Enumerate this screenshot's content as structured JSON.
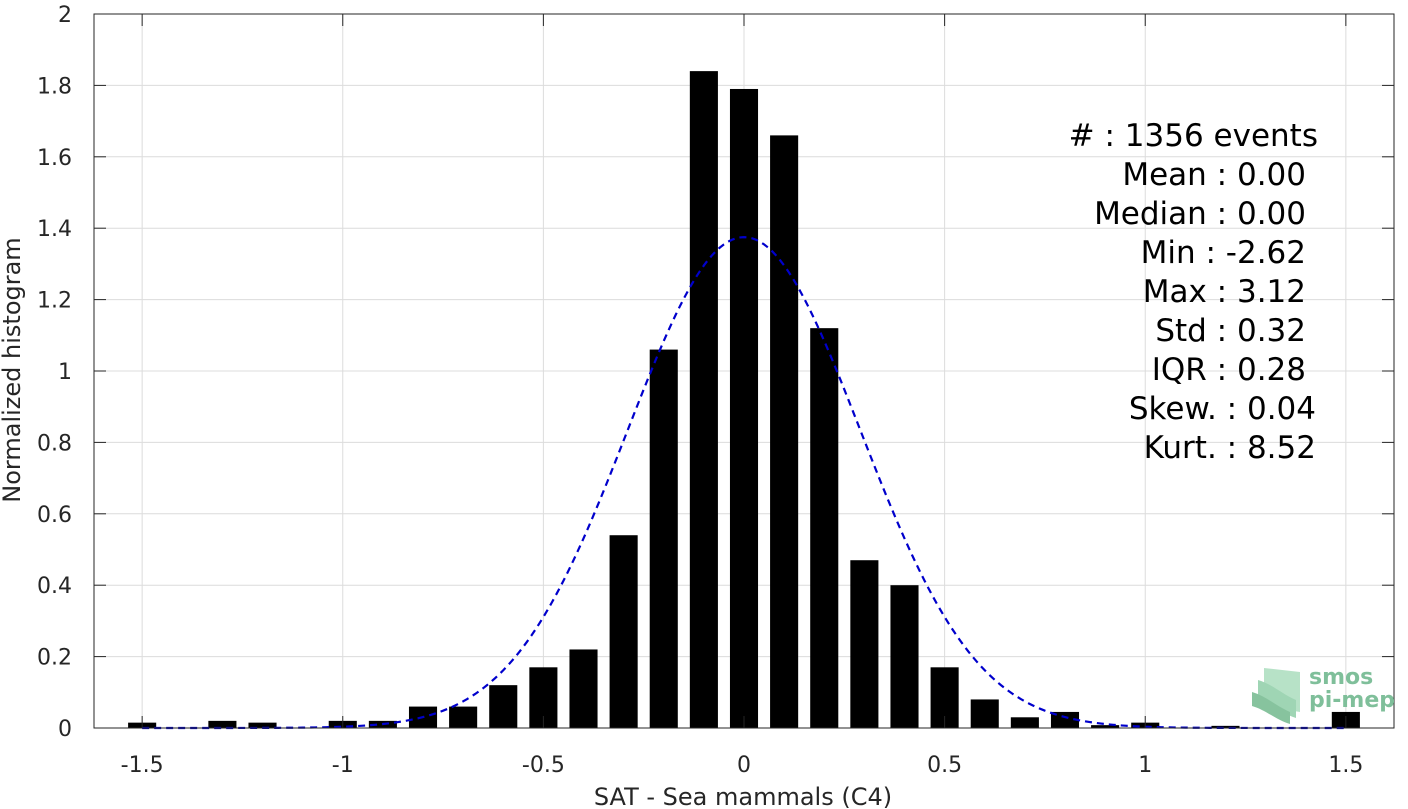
{
  "chart_data": {
    "type": "bar",
    "title": "",
    "xlabel": "SAT - Sea mammals (C4)",
    "ylabel": "Normalized histogram",
    "xlim": [
      -1.62,
      1.62
    ],
    "ylim": [
      0,
      2
    ],
    "grid": true,
    "x_ticks": [
      -1.5,
      -1,
      -0.5,
      0,
      0.5,
      1,
      1.5
    ],
    "x_tick_labels": [
      "-1.5",
      "-1",
      "-0.5",
      "0",
      "0.5",
      "1",
      "1.5"
    ],
    "y_ticks": [
      0,
      0.2,
      0.4,
      0.6,
      0.8,
      1,
      1.2,
      1.4,
      1.6,
      1.8,
      2
    ],
    "y_tick_labels": [
      "0",
      "0.2",
      "0.4",
      "0.6",
      "0.8",
      "1",
      "1.2",
      "1.4",
      "1.6",
      "1.8",
      "2"
    ],
    "bar_width": 0.07,
    "bar_color": "#000000",
    "x": [
      -1.5,
      -1.3,
      -1.2,
      -1.0,
      -0.9,
      -0.8,
      -0.7,
      -0.6,
      -0.5,
      -0.4,
      -0.3,
      -0.2,
      -0.1,
      0.0,
      0.1,
      0.2,
      0.3,
      0.4,
      0.5,
      0.6,
      0.7,
      0.8,
      0.9,
      1.0,
      1.2,
      1.5
    ],
    "values": [
      0.015,
      0.02,
      0.015,
      0.02,
      0.02,
      0.06,
      0.06,
      0.12,
      0.17,
      0.22,
      0.54,
      1.06,
      1.84,
      1.79,
      1.66,
      1.12,
      0.47,
      0.4,
      0.17,
      0.08,
      0.03,
      0.045,
      0.008,
      0.015,
      0.006,
      0.045
    ],
    "fit_curve": {
      "style": "dashed",
      "color": "#0000cc",
      "mean": 0.0,
      "std": 0.29,
      "peak": 1.375
    }
  },
  "stats": {
    "lines": [
      "#  : 1356 events",
      "Mean : 0.00",
      "Median : 0.00",
      "Min : -2.62",
      "Max : 3.12",
      "Std : 0.32",
      "IQR : 0.28",
      "Skew. : 0.04",
      "Kurt. : 8.52"
    ]
  },
  "logo": {
    "line1": "smos",
    "line2": "pi-mep",
    "color": "#7fbf9a"
  }
}
